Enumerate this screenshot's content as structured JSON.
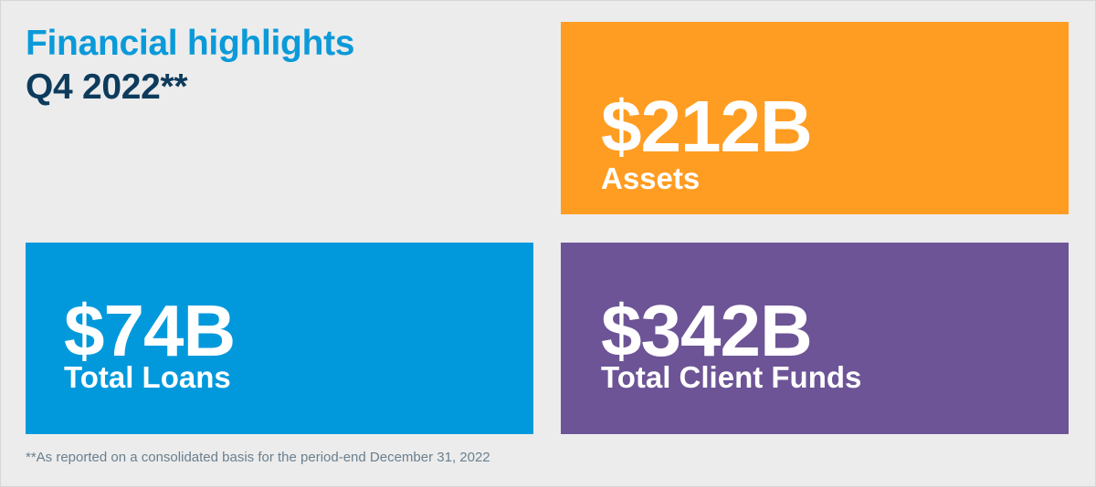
{
  "header": {
    "title_line1": "Financial highlights",
    "title_line2": "Q4 2022**"
  },
  "tiles": [
    {
      "value": "$212B",
      "label": "Assets",
      "color": "#ff9d22"
    },
    {
      "value": "$74B",
      "label": "Total Loans",
      "color": "#0299dc"
    },
    {
      "value": "$342B",
      "label": "Total Client Funds",
      "color": "#6d5496"
    }
  ],
  "footnote": "**As reported on a consolidated basis for the period-end December 31, 2022",
  "colors": {
    "background": "#ececec",
    "title_accent": "#0b9ad9",
    "title_dark": "#0d3b5c",
    "footnote": "#6a7f8e"
  }
}
